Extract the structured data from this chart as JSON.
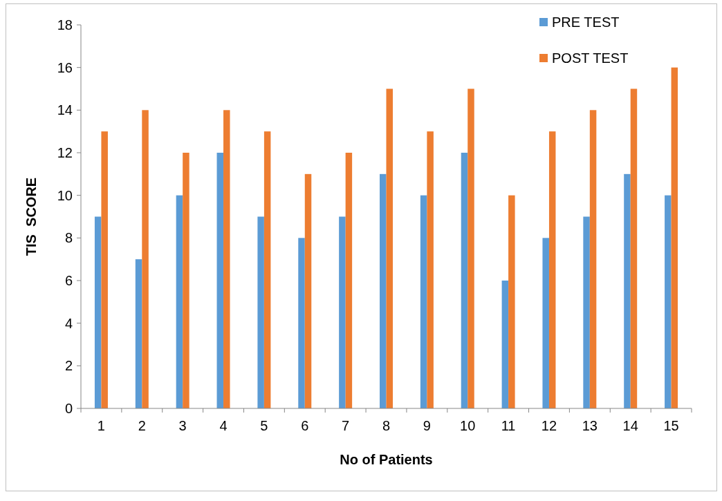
{
  "chart_data": {
    "type": "bar",
    "xlabel": "No of Patients",
    "ylabel": "TIS  SCORE",
    "categories": [
      "1",
      "2",
      "3",
      "4",
      "5",
      "6",
      "7",
      "8",
      "9",
      "10",
      "11",
      "12",
      "13",
      "14",
      "15"
    ],
    "series": [
      {
        "name": "PRE TEST",
        "color": "#5b9bd5",
        "values": [
          9,
          7,
          10,
          12,
          9,
          8,
          9,
          11,
          10,
          12,
          6,
          8,
          9,
          11,
          10
        ]
      },
      {
        "name": "POST TEST",
        "color": "#ed7d31",
        "values": [
          13,
          14,
          12,
          14,
          13,
          11,
          12,
          15,
          13,
          15,
          10,
          13,
          14,
          15,
          16
        ]
      }
    ],
    "ylim": [
      0,
      18
    ],
    "yticks": [
      0,
      2,
      4,
      6,
      8,
      10,
      12,
      14,
      16,
      18
    ],
    "grid": false,
    "legend": "top right"
  }
}
